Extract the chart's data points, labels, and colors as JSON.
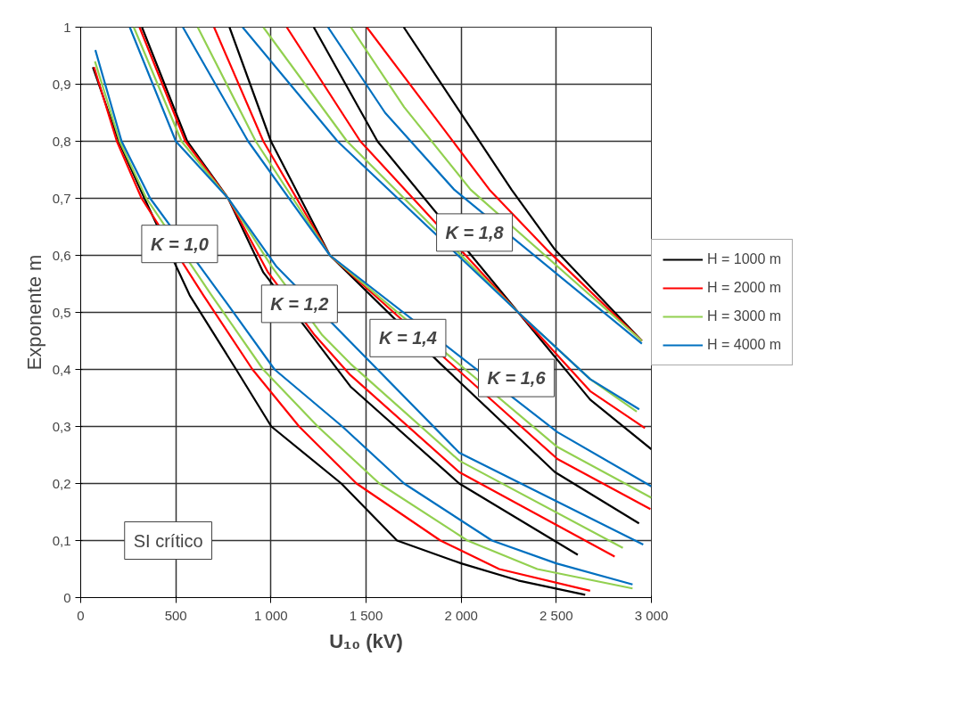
{
  "chart_data": {
    "type": "line",
    "xlabel": "U₁₀ (kV)",
    "ylabel": "Exponente m",
    "xlim": [
      0,
      3000
    ],
    "ylim": [
      0,
      1
    ],
    "xticks": [
      0,
      500,
      {
        "value": 1000,
        "label": "1 000"
      },
      {
        "value": 1500,
        "label": "1 500"
      },
      {
        "value": 2000,
        "label": "2 000"
      },
      {
        "value": 2500,
        "label": "2 500"
      },
      {
        "value": 3000,
        "label": "3 000"
      }
    ],
    "yticks": [
      0,
      {
        "value": 0.1,
        "label": "0,1"
      },
      {
        "value": 0.2,
        "label": "0,2"
      },
      {
        "value": 0.3,
        "label": "0,3"
      },
      {
        "value": 0.4,
        "label": "0,4"
      },
      {
        "value": 0.5,
        "label": "0,5"
      },
      {
        "value": 0.6,
        "label": "0,6"
      },
      {
        "value": 0.7,
        "label": "0,7"
      },
      {
        "value": 0.8,
        "label": "0,8"
      },
      {
        "value": 0.9,
        "label": "0,9"
      },
      1
    ],
    "grid": true,
    "legend": "right",
    "line_style": "solid",
    "marker": "none",
    "series": [
      {
        "name": "H = 1000 m",
        "color": "#000000",
        "x": [
          64,
          200,
          335,
          573,
          817,
          1002,
          1370,
          1663,
          2000,
          2300,
          2652
        ],
        "values": [
          0.93,
          0.8,
          0.7,
          0.53,
          0.4,
          0.3,
          0.2,
          0.1,
          0.06,
          0.03,
          0.005
        ]
      },
      {
        "name": "H = 2000 m",
        "color": "#ff0000",
        "x": [
          70,
          190,
          320,
          645,
          903,
          1148,
          1450,
          1891,
          2200,
          2678
        ],
        "values": [
          0.93,
          0.8,
          0.7,
          0.53,
          0.4,
          0.3,
          0.2,
          0.1,
          0.05,
          0.012
        ]
      },
      {
        "name": "H = 3000 m",
        "color": "#92d050",
        "x": [
          75,
          205,
          345,
          688,
          959,
          1246,
          1570,
          2033,
          2400,
          2901
        ],
        "values": [
          0.94,
          0.8,
          0.7,
          0.53,
          0.4,
          0.3,
          0.2,
          0.1,
          0.05,
          0.016
        ]
      },
      {
        "name": "H = 4000 m",
        "color": "#0070c0",
        "x": [
          77,
          215,
          365,
          738,
          1019,
          1375,
          1700,
          2162,
          2500,
          2901
        ],
        "values": [
          0.96,
          0.8,
          0.7,
          0.53,
          0.4,
          0.3,
          0.2,
          0.1,
          0.06,
          0.023
        ]
      },
      {
        "color": "#000000",
        "x": [
          322,
          560,
          775,
          960,
          1190,
          1418,
          1990,
          2613
        ],
        "values": [
          1,
          0.8,
          0.7,
          0.57,
          0.47,
          0.37,
          0.2,
          0.075
        ]
      },
      {
        "color": "#ff0000",
        "x": [
          309,
          550,
          775,
          985,
          1230,
          1418,
          1990,
          2807
        ],
        "values": [
          1,
          0.8,
          0.7,
          0.57,
          0.46,
          0.39,
          0.22,
          0.072
        ]
      },
      {
        "color": "#92d050",
        "x": [
          279,
          530,
          775,
          1005,
          1270,
          1418,
          1990,
          2850
        ],
        "values": [
          1,
          0.8,
          0.7,
          0.58,
          0.46,
          0.41,
          0.24,
          0.087
        ]
      },
      {
        "color": "#0070c0",
        "x": [
          258,
          500,
          775,
          1030,
          1990,
          2957
        ],
        "values": [
          1,
          0.8,
          0.7,
          0.58,
          0.254,
          0.093
        ]
      },
      {
        "color": "#000000",
        "x": [
          782,
          1000,
          1310,
          1891,
          2493,
          2935
        ],
        "values": [
          1,
          0.8,
          0.6,
          0.41,
          0.22,
          0.13
        ]
      },
      {
        "color": "#ff0000",
        "x": [
          701,
          960,
          1310,
          2506,
          2995
        ],
        "values": [
          1,
          0.8,
          0.6,
          0.243,
          0.155
        ]
      },
      {
        "color": "#92d050",
        "x": [
          615,
          920,
          1310,
          2506,
          3000
        ],
        "values": [
          1,
          0.8,
          0.6,
          0.264,
          0.175
        ]
      },
      {
        "color": "#0070c0",
        "x": [
          537,
          880,
          1310,
          2506,
          3000
        ],
        "values": [
          1,
          0.8,
          0.6,
          0.29,
          0.195
        ]
      },
      {
        "color": "#000000",
        "x": [
          1225,
          1560,
          2300,
          2678,
          3000
        ],
        "values": [
          1,
          0.8,
          0.5,
          0.347,
          0.26
        ]
      },
      {
        "color": "#ff0000",
        "x": [
          1083,
          1470,
          2300,
          2678,
          2966
        ],
        "values": [
          1,
          0.8,
          0.5,
          0.362,
          0.297
        ]
      },
      {
        "color": "#92d050",
        "x": [
          960,
          1400,
          2300,
          2678,
          2923
        ],
        "values": [
          1,
          0.8,
          0.5,
          0.383,
          0.326
        ]
      },
      {
        "color": "#0070c0",
        "x": [
          851,
          1350,
          2300,
          2678,
          2936
        ],
        "values": [
          1,
          0.8,
          0.5,
          0.383,
          0.33
        ]
      },
      {
        "color": "#000000",
        "x": [
          1698,
          2265,
          2493,
          2950
        ],
        "values": [
          1,
          0.715,
          0.61,
          0.45
        ]
      },
      {
        "color": "#ff0000",
        "x": [
          1504,
          2149,
          2450,
          2950
        ],
        "values": [
          1,
          0.715,
          0.61,
          0.45
        ]
      },
      {
        "color": "#92d050",
        "x": [
          1420,
          1700,
          2050,
          2950
        ],
        "values": [
          1,
          0.86,
          0.715,
          0.45
        ]
      },
      {
        "color": "#0070c0",
        "x": [
          1300,
          1600,
          1964,
          2950
        ],
        "values": [
          1,
          0.85,
          0.715,
          0.445
        ]
      }
    ],
    "annotations": [
      "K = 1,0",
      "K = 1,2",
      "K = 1,4",
      "K = 1,6",
      "K = 1,8",
      "SI crítico"
    ]
  }
}
